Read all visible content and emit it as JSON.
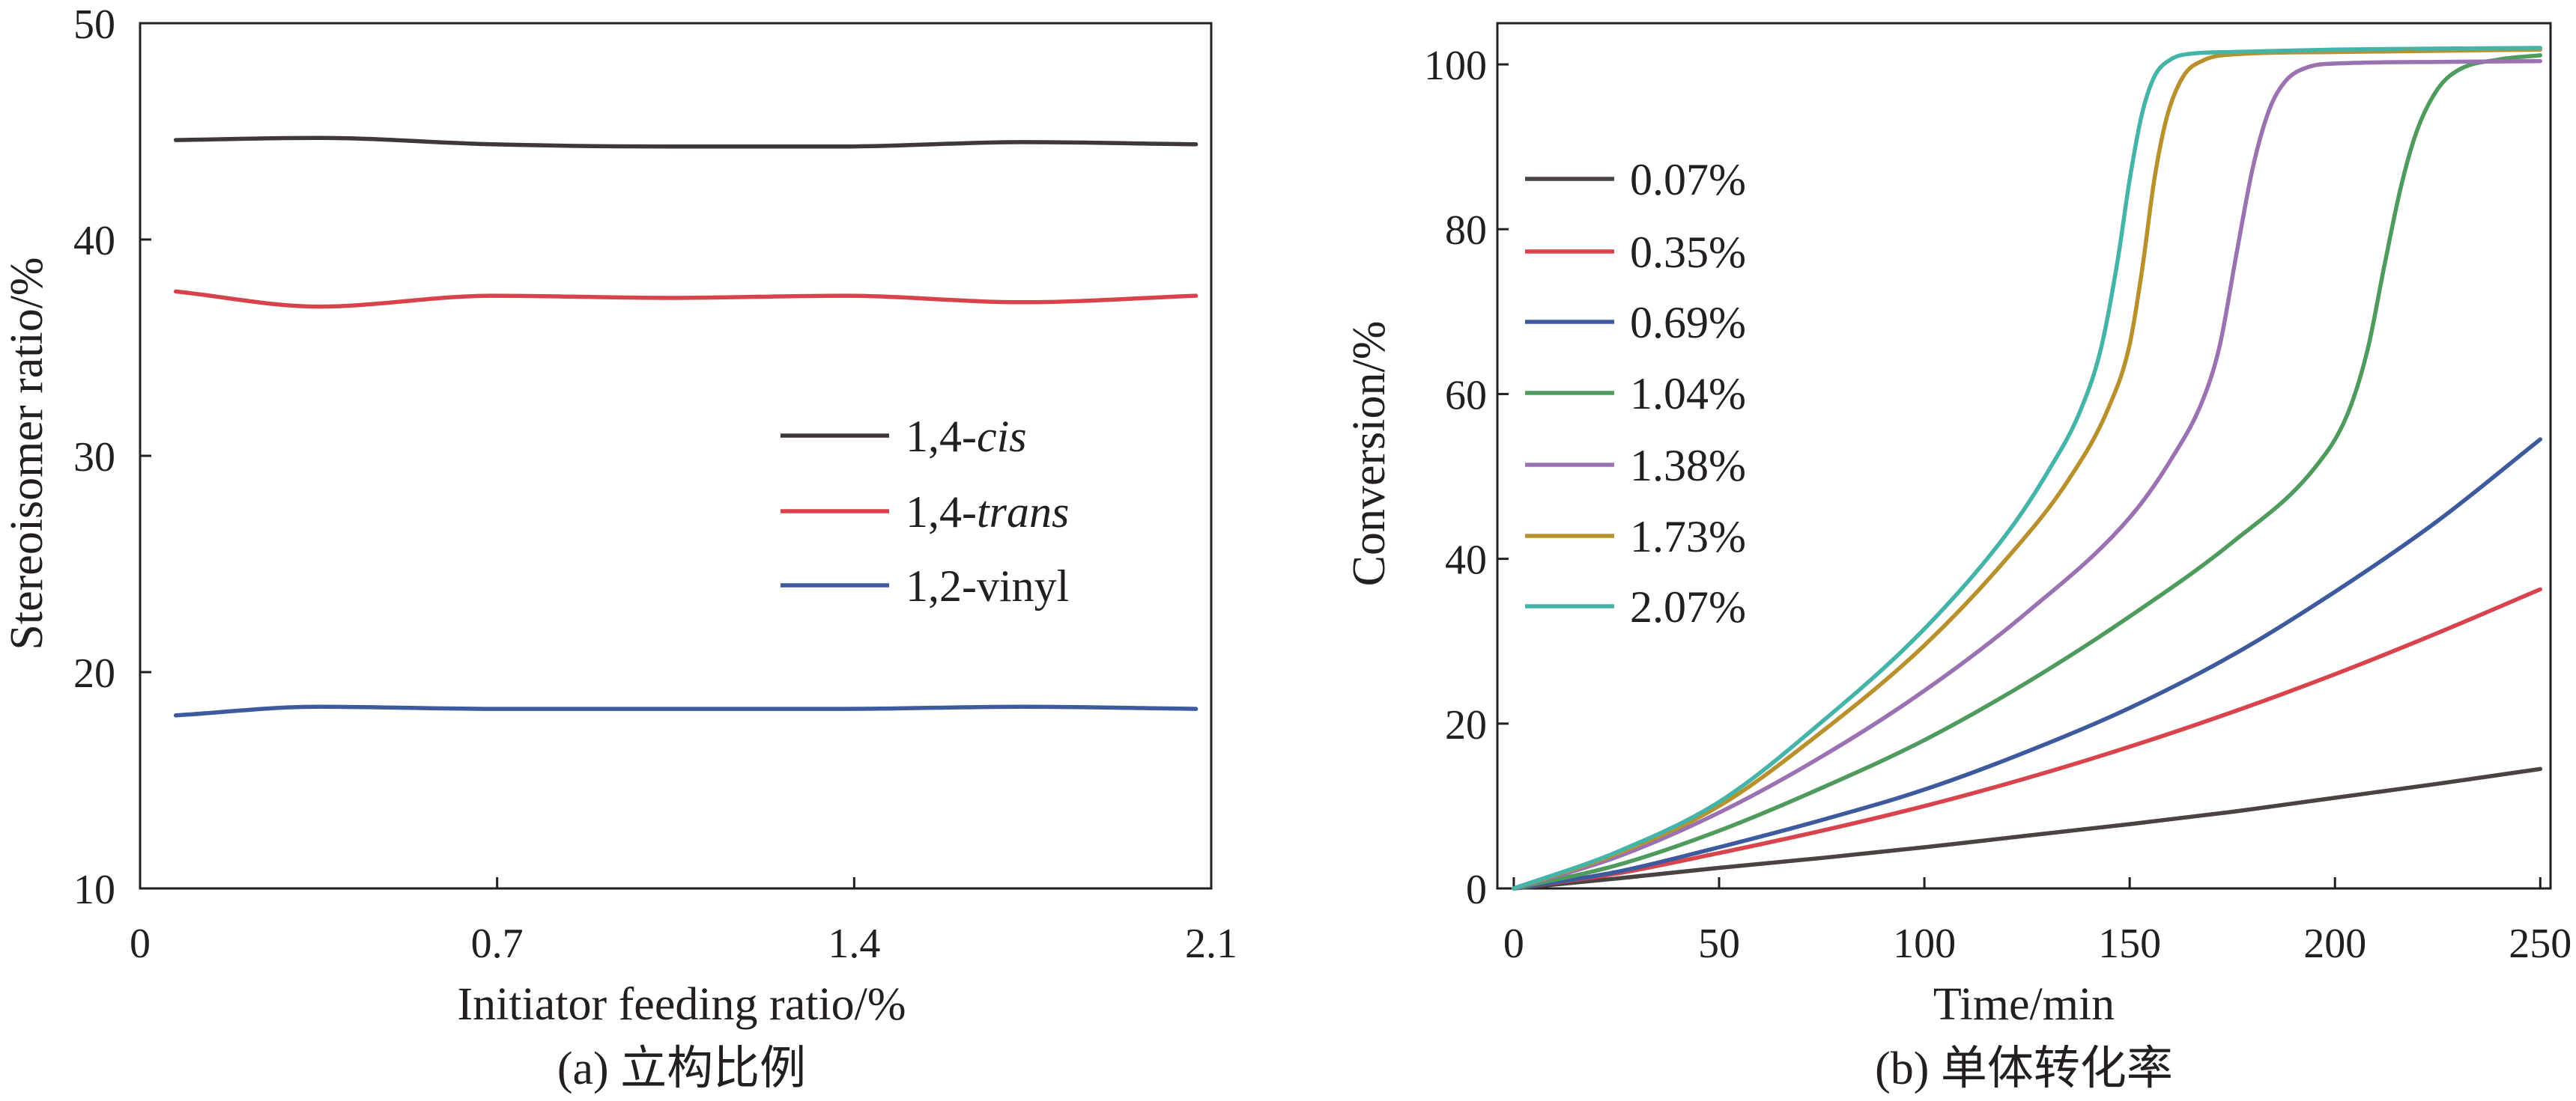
{
  "chart_data": [
    {
      "type": "line",
      "caption": "(a) 立构比例",
      "xlabel": "Initiator feeding ratio/%",
      "ylabel": "Stereoisomer ratio/%",
      "xlim": [
        0,
        2.1
      ],
      "ylim": [
        10,
        50
      ],
      "x_ticks": [
        0,
        0.7,
        1.4,
        2.1
      ],
      "y_ticks": [
        10,
        20,
        30,
        40,
        50
      ],
      "grid": false,
      "legend_position": "center-right",
      "x": [
        0.07,
        0.35,
        0.69,
        1.04,
        1.38,
        1.73,
        2.07
      ],
      "series": [
        {
          "label_parts": [
            {
              "text": "1,4-",
              "italic": false
            },
            {
              "text": "cis",
              "italic": true
            }
          ],
          "color": "#3e3838",
          "values": [
            44.6,
            44.7,
            44.4,
            44.3,
            44.3,
            44.5,
            44.4
          ]
        },
        {
          "label_parts": [
            {
              "text": "1,4-",
              "italic": false
            },
            {
              "text": "trans",
              "italic": true
            }
          ],
          "color": "#d8434b",
          "values": [
            37.6,
            36.9,
            37.4,
            37.3,
            37.4,
            37.1,
            37.4
          ]
        },
        {
          "label_parts": [
            {
              "text": "1,2-vinyl",
              "italic": false
            }
          ],
          "color": "#3d5a9e",
          "values": [
            18.0,
            18.4,
            18.3,
            18.3,
            18.3,
            18.4,
            18.3
          ]
        }
      ]
    },
    {
      "type": "line",
      "caption": "(b) 单体转化率",
      "xlabel": "Time/min",
      "ylabel": "Conversion/%",
      "xlim": [
        -4,
        252.5
      ],
      "ylim": [
        0,
        105
      ],
      "x_ticks": [
        0,
        50,
        100,
        150,
        200,
        250
      ],
      "y_ticks": [
        0,
        20,
        40,
        60,
        80,
        100
      ],
      "grid": false,
      "legend_position": "top-left",
      "series": [
        {
          "name": "0.07%",
          "color": "#4b4242",
          "x": [
            0,
            25,
            50,
            75,
            100,
            125,
            150,
            175,
            200,
            225,
            250
          ],
          "values": [
            0,
            1.2,
            2.5,
            3.7,
            5.0,
            6.4,
            7.8,
            9.3,
            11.0,
            12.7,
            14.5
          ]
        },
        {
          "name": "0.35%",
          "color": "#d8434c",
          "x": [
            0,
            25,
            50,
            75,
            100,
            125,
            150,
            175,
            200,
            225,
            250
          ],
          "values": [
            0,
            1.8,
            4.3,
            7.0,
            10.0,
            13.4,
            17.2,
            21.4,
            26.0,
            31.0,
            36.3
          ]
        },
        {
          "name": "0.69%",
          "color": "#3d5a9f",
          "x": [
            0,
            25,
            50,
            75,
            100,
            125,
            150,
            175,
            200,
            225,
            250
          ],
          "values": [
            0,
            2.0,
            5.0,
            8.3,
            12.0,
            16.6,
            21.9,
            28.3,
            36.0,
            44.6,
            54.5
          ]
        },
        {
          "name": "1.04%",
          "color": "#4f9b5e",
          "x": [
            0,
            25,
            50,
            75,
            100,
            125,
            150,
            175,
            195,
            203,
            208,
            212,
            216,
            220,
            225,
            230,
            240,
            250
          ],
          "values": [
            0,
            2.8,
            7.0,
            12.2,
            18.0,
            25.0,
            33.0,
            42.0,
            51.0,
            57.5,
            65.5,
            75.5,
            85.0,
            92.0,
            97.0,
            99.3,
            100.6,
            101.1
          ]
        },
        {
          "name": "1.38%",
          "color": "#9b72b1",
          "x": [
            0,
            25,
            50,
            75,
            100,
            125,
            150,
            160,
            168,
            172,
            176,
            180,
            184,
            188,
            193,
            200,
            225,
            250
          ],
          "values": [
            0,
            3.8,
            9.2,
            16.0,
            24.0,
            33.5,
            45.0,
            52.0,
            59.5,
            66.0,
            77.0,
            87.5,
            94.5,
            98.0,
            99.6,
            100.1,
            100.3,
            100.4
          ]
        },
        {
          "name": "1.73%",
          "color": "#b8912d",
          "x": [
            0,
            25,
            50,
            75,
            100,
            120,
            135,
            145,
            150,
            153,
            156,
            159,
            163,
            168,
            175,
            200,
            250
          ],
          "values": [
            0,
            4.2,
            10.0,
            19.0,
            29.5,
            40.0,
            49.5,
            58.5,
            66.0,
            75.0,
            86.0,
            93.5,
            98.5,
            100.5,
            101.2,
            101.5,
            101.8
          ]
        },
        {
          "name": "2.07%",
          "color": "#45b4a8",
          "x": [
            0,
            25,
            50,
            75,
            100,
            120,
            130,
            138,
            143,
            147,
            150,
            153,
            156,
            160,
            165,
            175,
            200,
            250
          ],
          "values": [
            0,
            4.4,
            10.5,
            20.2,
            31.5,
            43.0,
            50.5,
            58.0,
            65.5,
            76.0,
            86.0,
            94.0,
            98.5,
            100.6,
            101.3,
            101.5,
            101.8,
            102.0
          ]
        }
      ]
    }
  ]
}
